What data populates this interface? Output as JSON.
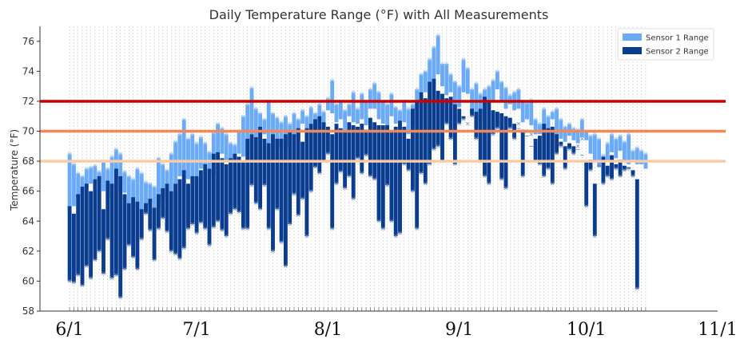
{
  "chart_data": {
    "type": "bar",
    "title": "Daily Temperature Range (°F) with All Measurements",
    "xlabel": "",
    "ylabel": "Temperature (°F)",
    "ylim": [
      58,
      77
    ],
    "yticks": [
      58,
      60,
      62,
      64,
      66,
      68,
      70,
      72,
      74,
      76
    ],
    "xtick_labels": [
      {
        "day": 4,
        "label": "6/1"
      },
      {
        "day": 34,
        "label": "7/1"
      },
      {
        "day": 65,
        "label": "8/1"
      },
      {
        "day": 96,
        "label": "9/1"
      },
      {
        "day": 126,
        "label": "10/1"
      },
      {
        "day": 157,
        "label": "11/1"
      }
    ],
    "x_range": [
      -3,
      157
    ],
    "legend": {
      "placement": "top-right",
      "entries": [
        "Sensor 1 Range",
        "Sensor 2 Range"
      ]
    },
    "colors": {
      "sensor1": "#6aaaf7",
      "sensor2": "#0a3d8f",
      "line72": "#cc0000",
      "line70": "#f2875a",
      "line68": "#f7cba6",
      "grid": "#c8c8c8"
    },
    "reference_lines": [
      72,
      70,
      68
    ],
    "day_start_index": 4,
    "sensor1_high": [
      68.5,
      67.8,
      67.2,
      67.0,
      67.5,
      67.6,
      67.7,
      67.3,
      68.0,
      67.5,
      68.3,
      68.8,
      68.5,
      67.3,
      67.0,
      66.8,
      67.5,
      67.2,
      66.6,
      66.5,
      66.3,
      68.2,
      67.8,
      67.4,
      68.5,
      69.3,
      69.8,
      70.8,
      69.5,
      69.8,
      69.2,
      69.6,
      69.2,
      68.6,
      69.9,
      70.5,
      70.2,
      69.8,
      69.2,
      69.1,
      70.0,
      71.0,
      71.8,
      72.9,
      71.5,
      71.2,
      70.8,
      72.0,
      71.2,
      70.9,
      70.6,
      71.0,
      70.5,
      71.2,
      70.8,
      71.4,
      71.0,
      71.6,
      71.2,
      71.8,
      71.3,
      72.2,
      73.4,
      71.8,
      72.0,
      71.4,
      71.8,
      72.6,
      71.5,
      72.5,
      72.0,
      72.8,
      73.2,
      72.6,
      72.0,
      71.8,
      72.5,
      71.6,
      71.4,
      72.0,
      71.5,
      71.8,
      72.8,
      73.8,
      74.0,
      74.8,
      75.6,
      76.4,
      74.5,
      74.5,
      73.8,
      73.3,
      73.0,
      74.8,
      74.2,
      72.8,
      73.2,
      72.5,
      72.8,
      73.0,
      73.4,
      74.0,
      73.3,
      72.9,
      72.4,
      72.6,
      72.8,
      72.0,
      71.9,
      72.1,
      70.8,
      70.5,
      71.5,
      71.0,
      71.3,
      71.5,
      70.8,
      70.3,
      70.5,
      70.2,
      70.1,
      70.8,
      70.0,
      69.7,
      69.8,
      69.5,
      68.4,
      69.2,
      69.8,
      69.5,
      69.7,
      69.3,
      69.8,
      68.7,
      68.9,
      68.7,
      68.5
    ],
    "sensor1_low": [
      64.8,
      65.0,
      65.5,
      65.8,
      66.2,
      66.5,
      66.8,
      66.7,
      66.0,
      65.5,
      66.2,
      66.6,
      66.0,
      65.9,
      65.2,
      65.0,
      64.8,
      64.6,
      64.8,
      65.2,
      64.9,
      65.0,
      65.3,
      65.8,
      66.0,
      66.5,
      67.0,
      66.8,
      66.8,
      66.5,
      67.0,
      67.5,
      67.8,
      67.2,
      67.0,
      68.5,
      68.5,
      68.0,
      68.2,
      68.0,
      68.5,
      68.3,
      68.4,
      69.8,
      69.5,
      69.5,
      69.8,
      69.2,
      69.3,
      68.8,
      69.0,
      68.8,
      69.0,
      69.6,
      69.5,
      70.5,
      70.2,
      70.5,
      70.1,
      70.7,
      70.1,
      71.4,
      71.2,
      70.6,
      70.8,
      70.1,
      71.0,
      70.6,
      70.5,
      70.8,
      70.4,
      71.5,
      71.5,
      70.8,
      70.5,
      69.8,
      71.0,
      70.5,
      70.6,
      70.6,
      69.8,
      70.5,
      71.4,
      72.0,
      72.6,
      73.2,
      73.4,
      73.8,
      73.0,
      72.4,
      72.6,
      71.8,
      71.6,
      72.6,
      72.5,
      71.2,
      70.2,
      70.6,
      71.0,
      71.5,
      72.0,
      72.8,
      72.0,
      71.5,
      71.8,
      71.4,
      71.5,
      70.6,
      70.8,
      70.4,
      69.8,
      69.8,
      70.0,
      69.5,
      70.8,
      69.7,
      69.5,
      69.3,
      69.7,
      69.4,
      69.2,
      69.6,
      69.4,
      68.5,
      68.0,
      67.6,
      67.8,
      68.0,
      68.6,
      68.2,
      68.7,
      68.0,
      67.8,
      68.1,
      67.8,
      67.8,
      67.5
    ],
    "sensor2_high": [
      65.0,
      64.5,
      65.8,
      66.3,
      66.5,
      66.0,
      66.8,
      67.0,
      64.8,
      66.7,
      66.5,
      67.5,
      67.0,
      65.8,
      65.2,
      65.6,
      65.3,
      64.8,
      65.2,
      65.5,
      64.9,
      65.8,
      66.2,
      66.5,
      66.0,
      66.5,
      66.8,
      67.4,
      66.5,
      67.0,
      67.0,
      67.4,
      67.8,
      67.5,
      68.5,
      68.6,
      68.2,
      67.8,
      68.2,
      68.5,
      68.3,
      68.0,
      69.5,
      69.8,
      69.6,
      70.3,
      69.5,
      69.2,
      69.8,
      69.5,
      69.5,
      69.8,
      70.0,
      69.8,
      70.2,
      69.3,
      70.2,
      70.5,
      70.8,
      71.0,
      70.6,
      70.3,
      69.8,
      70.5,
      70.2,
      70.0,
      70.6,
      70.4,
      70.3,
      70.5,
      70.1,
      70.9,
      70.6,
      70.4,
      70.4,
      70.4,
      70.0,
      70.3,
      70.7,
      70.3,
      69.5,
      71.5,
      72.0,
      72.6,
      72.2,
      73.3,
      73.5,
      72.7,
      72.5,
      72.2,
      72.3,
      71.8,
      71.5,
      71.0,
      70.0,
      71.5,
      71.3,
      71.5,
      72.3,
      72.0,
      71.4,
      71.3,
      71.2,
      71.0,
      70.9,
      70.5,
      70.2,
      70.1,
      69.7,
      69.0,
      69.5,
      69.7,
      70.5,
      70.2,
      70.3,
      69.8,
      69.3,
      69.0,
      69.2,
      69.0,
      68.8,
      68.4,
      68.0,
      68.1,
      66.5,
      67.7,
      68.3,
      67.7,
      68.4,
      67.8,
      68.1,
      67.7,
      67.6,
      67.4,
      66.8
    ],
    "sensor2_low": [
      60.0,
      59.9,
      60.4,
      59.7,
      61.0,
      60.2,
      61.4,
      62.0,
      60.5,
      62.8,
      60.2,
      60.4,
      58.9,
      60.8,
      62.4,
      61.6,
      60.8,
      62.8,
      64.5,
      63.4,
      61.4,
      63.5,
      64.2,
      63.3,
      62.0,
      61.8,
      61.5,
      62.2,
      63.5,
      63.8,
      63.2,
      63.9,
      63.5,
      62.4,
      63.6,
      64.0,
      63.4,
      63.0,
      64.5,
      64.8,
      64.6,
      63.5,
      63.5,
      66.4,
      65.2,
      64.8,
      66.4,
      63.5,
      62.0,
      64.8,
      62.6,
      61.0,
      63.8,
      65.8,
      64.4,
      65.5,
      63.0,
      66.0,
      67.6,
      67.2,
      68.0,
      68.5,
      63.5,
      66.5,
      67.3,
      66.2,
      67.0,
      65.5,
      68.2,
      67.2,
      68.4,
      67.0,
      66.8,
      64.0,
      63.5,
      66.4,
      64.0,
      63.0,
      63.2,
      67.8,
      67.4,
      66.0,
      63.5,
      67.2,
      66.5,
      67.8,
      68.8,
      69.0,
      68.0,
      70.5,
      69.5,
      67.8,
      70.5,
      70.8,
      70.5,
      71.0,
      69.5,
      68.0,
      67.0,
      66.5,
      69.8,
      70.2,
      66.8,
      66.2,
      70.2,
      69.5,
      70.5,
      67.0,
      70.0,
      69.8,
      68.0,
      67.8,
      67.0,
      67.5,
      66.5,
      68.5,
      69.0,
      67.5,
      68.8,
      68.5,
      69.0,
      69.5,
      65.0,
      67.4,
      63.0,
      67.8,
      66.5,
      67.0,
      66.8,
      67.5,
      67.0,
      67.4,
      67.5,
      67.0,
      59.5
    ]
  }
}
